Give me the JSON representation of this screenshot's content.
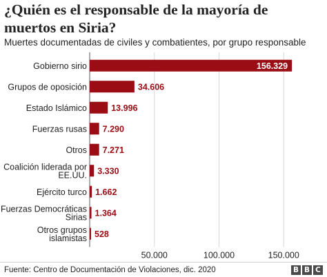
{
  "title": "¿Quién es el responsable de la mayoría de muertos en Siria?",
  "subtitle": "Muertes documentadas de civiles y combatientes, por grupo responsable",
  "source": "Fuente: Centro de Documentación de Violaciones, dic. 2020",
  "logo": [
    "B",
    "B",
    "C"
  ],
  "colors": {
    "bar": "#9b0d14",
    "text": "#222222",
    "grid": "#d7d7d7"
  },
  "chart_data": {
    "type": "bar",
    "orientation": "horizontal",
    "title": "¿Quién es el responsable de la mayoría de muertos en Siria?",
    "subtitle": "Muertes documentadas de civiles y combatientes, por grupo responsable",
    "categories": [
      [
        "Gobierno sirio"
      ],
      [
        "Grupos de oposición"
      ],
      [
        "Estado Islámico"
      ],
      [
        "Fuerzas rusas"
      ],
      [
        "Otros"
      ],
      [
        "Coalición liderada por",
        "EE.UU."
      ],
      [
        "Ejército turco"
      ],
      [
        "Fuerzas Democráticas",
        "Sirias"
      ],
      [
        "Otros grupos",
        "islamistas"
      ]
    ],
    "values": [
      156329,
      34606,
      13996,
      7290,
      7271,
      3330,
      1662,
      1364,
      528
    ],
    "value_labels": [
      "156.329",
      "34.606",
      "13.996",
      "7.290",
      "7.271",
      "3.330",
      "1.662",
      "1.364",
      "528"
    ],
    "xticks": [
      0,
      50000,
      100000,
      150000
    ],
    "xtick_labels": [
      "",
      "50.000",
      "100.000",
      "150.000"
    ],
    "xlim": [
      0,
      160000
    ],
    "grid": true,
    "legend": "none"
  }
}
